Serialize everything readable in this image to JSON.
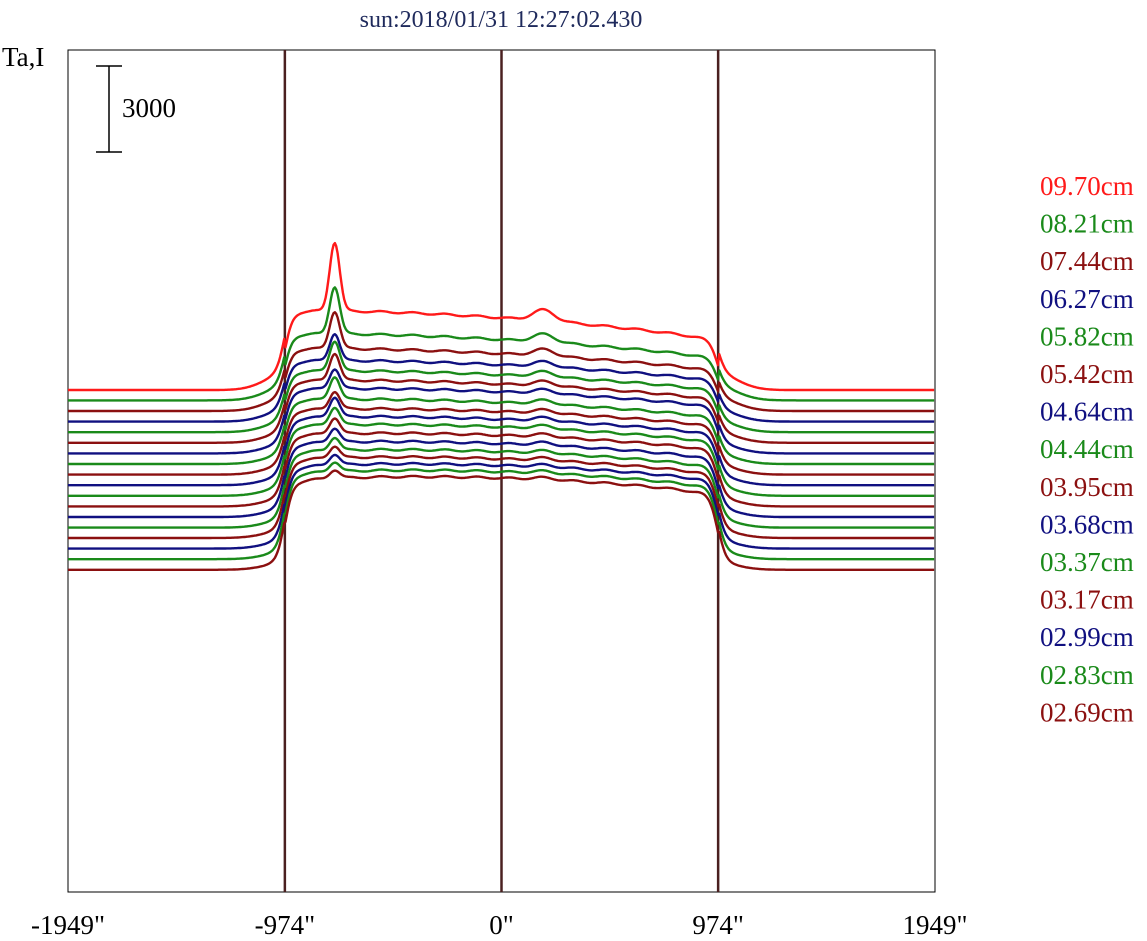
{
  "chart_data": {
    "type": "line",
    "title": "sun:2018/01/31 12:27:02.430",
    "ylabel": "Ta,I",
    "xlim": [
      -1949,
      1949
    ],
    "x_ticks": [
      -1949,
      -974,
      0,
      974,
      1949
    ],
    "x_tick_labels": [
      "-1949\"",
      "-974\"",
      "0\"",
      "974\"",
      "1949\""
    ],
    "vertical_lines_at": [
      -974,
      0,
      974
    ],
    "scale_bar": {
      "label": "3000",
      "value": 3000
    },
    "colors": {
      "red": "#ff1a1a",
      "green": "#1a8a1a",
      "darkred": "#8b1010",
      "navy": "#101080",
      "frame": "#000000",
      "marker": "#4a2020"
    },
    "series": [
      {
        "name": "09.70cm",
        "color": "red",
        "baseline": 2580,
        "disk": 2520,
        "tilt": 500,
        "limb": 1500,
        "peak": 2400,
        "bump": 380
      },
      {
        "name": "08.21cm",
        "color": "green",
        "baseline": 2220,
        "disk": 2120,
        "tilt": 420,
        "limb": 1250,
        "peak": 1650,
        "bump": 280
      },
      {
        "name": "07.44cm",
        "color": "darkred",
        "baseline": 1850,
        "disk": 2000,
        "tilt": 380,
        "limb": 1150,
        "peak": 1300,
        "bump": 230
      },
      {
        "name": "06.27cm",
        "color": "navy",
        "baseline": 1480,
        "disk": 1980,
        "tilt": 340,
        "limb": 1000,
        "peak": 950,
        "bump": 180
      },
      {
        "name": "05.82cm",
        "color": "green",
        "baseline": 1110,
        "disk": 2000,
        "tilt": 330,
        "limb": 950,
        "peak": 1050,
        "bump": 180
      },
      {
        "name": "05.42cm",
        "color": "darkred",
        "baseline": 740,
        "disk": 2050,
        "tilt": 320,
        "limb": 900,
        "peak": 950,
        "bump": 160
      },
      {
        "name": "04.64cm",
        "color": "navy",
        "baseline": 370,
        "disk": 2150,
        "tilt": 300,
        "limb": 850,
        "peak": 700,
        "bump": 140
      },
      {
        "name": "04.44cm",
        "color": "green",
        "baseline": 0,
        "disk": 2150,
        "tilt": 300,
        "limb": 830,
        "peak": 800,
        "bump": 140
      },
      {
        "name": "03.95cm",
        "color": "darkred",
        "baseline": -370,
        "disk": 2200,
        "tilt": 280,
        "limb": 800,
        "peak": 620,
        "bump": 120
      },
      {
        "name": "03.68cm",
        "color": "navy",
        "baseline": -740,
        "disk": 2300,
        "tilt": 280,
        "limb": 780,
        "peak": 700,
        "bump": 120
      },
      {
        "name": "03.37cm",
        "color": "green",
        "baseline": -1110,
        "disk": 2400,
        "tilt": 280,
        "limb": 760,
        "peak": 620,
        "bump": 110
      },
      {
        "name": "03.17cm",
        "color": "darkred",
        "baseline": -1480,
        "disk": 2480,
        "tilt": 260,
        "limb": 740,
        "peak": 560,
        "bump": 100
      },
      {
        "name": "02.99cm",
        "color": "navy",
        "baseline": -1850,
        "disk": 2560,
        "tilt": 260,
        "limb": 720,
        "peak": 500,
        "bump": 100
      },
      {
        "name": "02.83cm",
        "color": "green",
        "baseline": -2220,
        "disk": 2650,
        "tilt": 260,
        "limb": 700,
        "peak": 460,
        "bump": 90
      },
      {
        "name": "02.69cm",
        "color": "darkred",
        "baseline": -2580,
        "disk": 2760,
        "tilt": 250,
        "limb": 680,
        "peak": 420,
        "bump": 90
      },
      {
        "name": "",
        "color": "navy",
        "baseline": -2950,
        "disk": 2900,
        "tilt": 240,
        "limb": 660,
        "peak": 380,
        "bump": 80
      },
      {
        "name": "",
        "color": "green",
        "baseline": -3320,
        "disk": 3050,
        "tilt": 240,
        "limb": 640,
        "peak": 340,
        "bump": 80
      },
      {
        "name": "",
        "color": "darkred",
        "baseline": -3690,
        "disk": 3200,
        "tilt": 230,
        "limb": 620,
        "peak": 300,
        "bump": 70
      }
    ]
  }
}
